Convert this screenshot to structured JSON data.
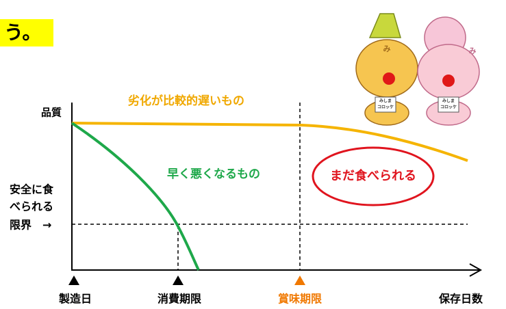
{
  "banner": {
    "text": "う。"
  },
  "diagram": {
    "y_axis_label": "品質",
    "slow_curve_label": "劣化が比較的遅いもの",
    "fast_curve_label": "早く悪くなるもの",
    "still_edible_label": "まだ食べられる",
    "safety_limit_label": [
      "安全に食",
      "べられる",
      "限界　→"
    ],
    "x_labels": [
      "製造日",
      "消費期限",
      "賞味期限",
      "保存日数"
    ]
  },
  "mascots": [
    {
      "face": "み",
      "book": [
        "みしま",
        "コロッケ"
      ]
    },
    {
      "face": "み",
      "book": [
        "みしま",
        "コロッケ"
      ]
    }
  ]
}
